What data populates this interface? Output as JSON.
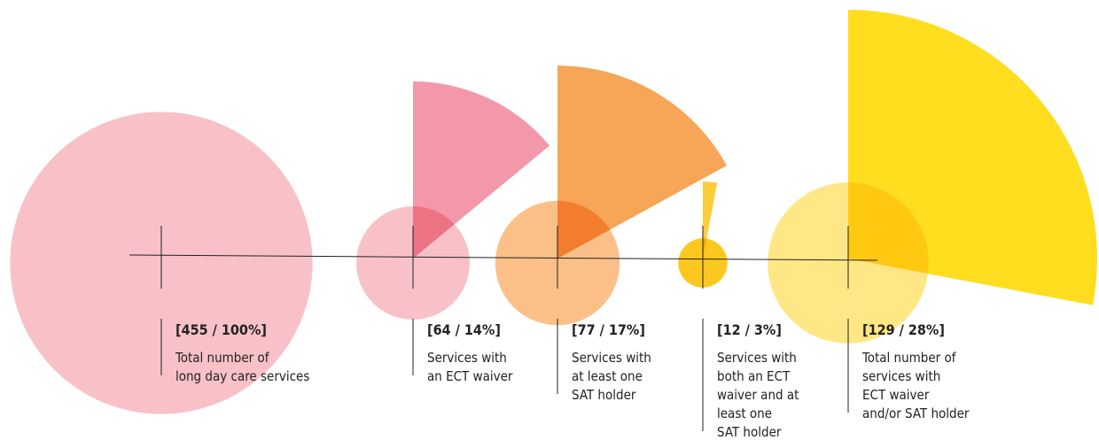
{
  "chart_data": {
    "type": "circle-wedge",
    "categories": [
      [
        "Total number of",
        "long day care services"
      ],
      [
        "Services with",
        "an ECT waiver"
      ],
      [
        "Services with",
        "at least one",
        "SAT holder"
      ],
      [
        "Services with",
        "both an ECT",
        "waiver and at",
        "least one",
        "SAT holder"
      ],
      [
        "Total number of",
        "services with",
        " ECT waiver",
        "and/or SAT holder"
      ]
    ],
    "counts": [
      455,
      64,
      77,
      12,
      129
    ],
    "percents": [
      100,
      14,
      17,
      3,
      28
    ],
    "value_labels": [
      "[455 / 100%]",
      "[64 / 14%]",
      "[77 / 17%]",
      "[12 / 3%]",
      "[129 / 28%]"
    ],
    "circle_colors": [
      "#f8c1c8",
      "#f8c1c8",
      "#fbc088",
      "#fcc820",
      "#ffe680"
    ],
    "wedge_colors": [
      null,
      "#f28a9c",
      "#f59a3e",
      "#fcc820",
      "#ffd900"
    ]
  }
}
